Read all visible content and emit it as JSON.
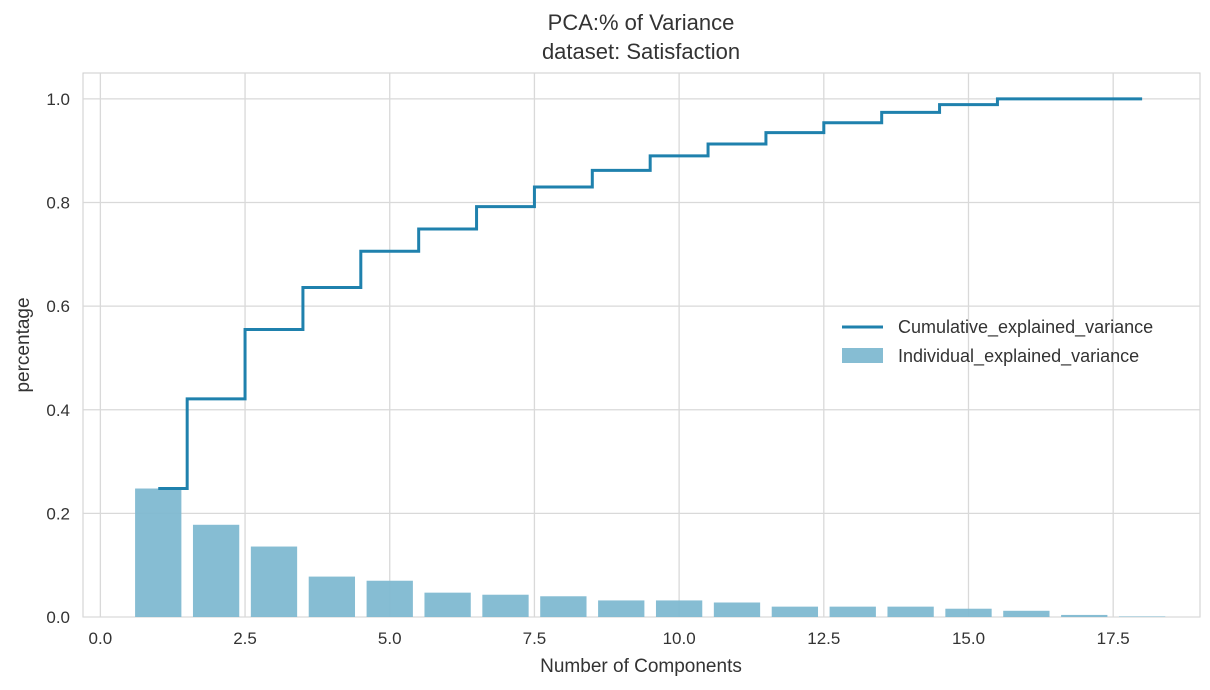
{
  "chart_data": {
    "type": "bar",
    "title": "PCA:% of Variance",
    "subtitle": "dataset: Satisfaction",
    "xlabel": "Number of Components",
    "ylabel": "percentage",
    "xlim": [
      -0.3,
      19.0
    ],
    "ylim": [
      0.0,
      1.05
    ],
    "x_ticks": [
      0.0,
      2.5,
      5.0,
      7.5,
      10.0,
      12.5,
      15.0,
      17.5
    ],
    "x_tick_labels": [
      "0.0",
      "2.5",
      "5.0",
      "7.5",
      "10.0",
      "12.5",
      "15.0",
      "17.5"
    ],
    "y_ticks": [
      0.0,
      0.2,
      0.4,
      0.6,
      0.8,
      1.0
    ],
    "y_tick_labels": [
      "0.0",
      "0.2",
      "0.4",
      "0.6",
      "0.8",
      "1.0"
    ],
    "grid": true,
    "legend_position": "center-right",
    "x": [
      1,
      2,
      3,
      4,
      5,
      6,
      7,
      8,
      9,
      10,
      11,
      12,
      13,
      14,
      15,
      16,
      17,
      18
    ],
    "series": [
      {
        "name": "Cumulative_explained_variance",
        "type": "step",
        "color": "#1f81ad",
        "values": [
          0.248,
          0.421,
          0.555,
          0.636,
          0.706,
          0.749,
          0.792,
          0.83,
          0.862,
          0.89,
          0.913,
          0.935,
          0.954,
          0.974,
          0.989,
          1.0,
          1.0,
          1.0
        ]
      },
      {
        "name": "Individual_explained_variance",
        "type": "bar",
        "color": "#7fb9d1",
        "values": [
          0.248,
          0.178,
          0.136,
          0.078,
          0.07,
          0.047,
          0.043,
          0.04,
          0.032,
          0.032,
          0.028,
          0.02,
          0.02,
          0.02,
          0.016,
          0.012,
          0.004,
          0.001
        ]
      }
    ]
  }
}
